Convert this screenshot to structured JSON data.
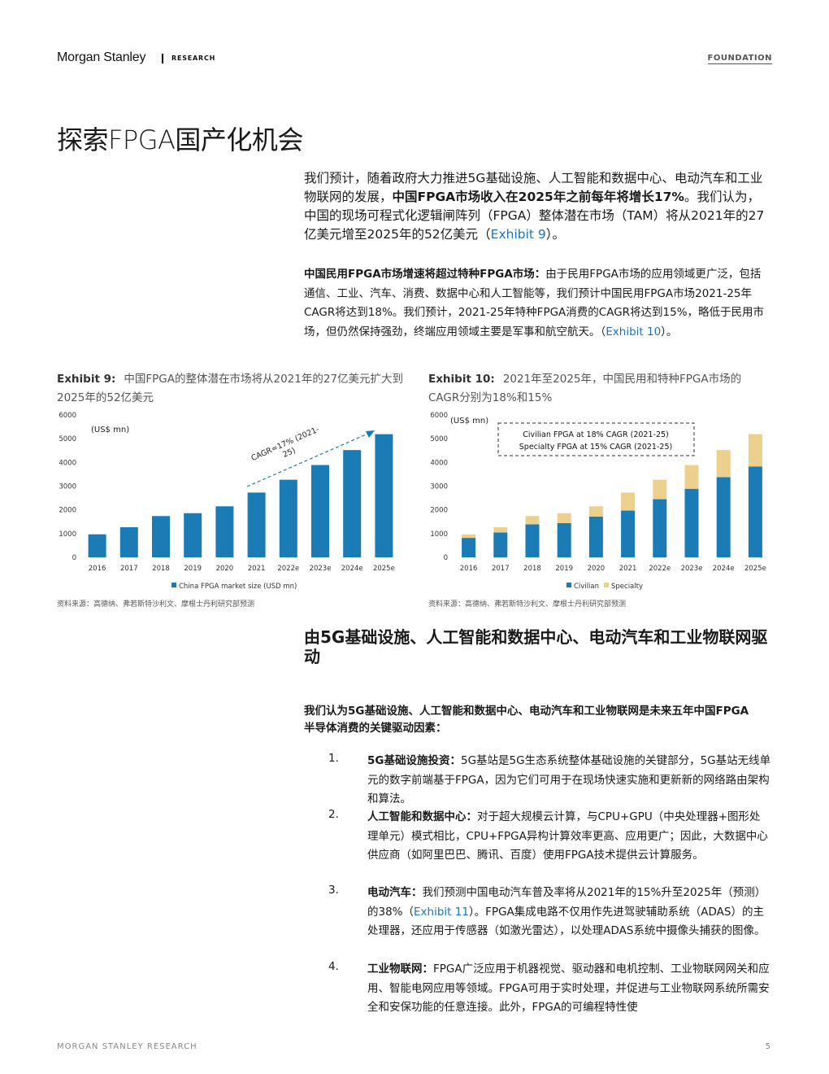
{
  "header": {
    "brand": "Morgan Stanley",
    "research": "RESEARCH",
    "foundation": "FOUNDATION"
  },
  "page_title": "探索FPGA国产化机会",
  "para1": {
    "t1": "我们预计，随着政府大力推进5G基础设施、人工智能和数据中心、电动汽车和工业物联网的发展，",
    "bold": "中国FPGA市场收入在2025年之前每年将增长17%",
    "t2": "。我们认为，中国的现场可程式化逻辑闸阵列（FPGA）整体潜在市场（TAM）将从2021年的27亿美元增至2025年的52亿美元（",
    "link": "Exhibit 9",
    "t3": "）。"
  },
  "para2": {
    "bold": "中国民用FPGA市场增速将超过特种FPGA市场：",
    "t1": "由于民用FPGA市场的应用领域更广泛，包括通信、工业、汽车、消费、数据中心和人工智能等，我们预计中国民用FPGA市场2021-25年CAGR将达到18%。我们预计，2021-25年特种FPGA消费的CAGR将达到15%，略低于民用市场，但仍然保持强劲，终端应用领域主要是军事和航空航天。（",
    "link": "Exhibit 10",
    "t2": "）。"
  },
  "exhibit9": {
    "label": "Exhibit 9:",
    "title": "中国FPGA的整体潜在市场将从2021年的27亿美元扩大到2025年的52亿美元",
    "source": "资料来源：高德纳、弗若斯特沙利文、摩根士丹利研究部预测"
  },
  "exhibit10": {
    "label": "Exhibit 10:",
    "title": "2021年至2025年，中国民用和特种FPGA市场的CAGR分别为18%和15%",
    "source": "资料来源：高德纳、弗若斯特沙利文、摩根士丹利研究部预测"
  },
  "chart_data": [
    {
      "type": "bar",
      "ylabel": "(US$ mn)",
      "ylim": [
        0,
        6000
      ],
      "yticks": [
        0,
        1000,
        2000,
        3000,
        4000,
        5000,
        6000
      ],
      "categories": [
        "2016",
        "2017",
        "2018",
        "2019",
        "2020",
        "2021",
        "2022e",
        "2023e",
        "2024e",
        "2025e"
      ],
      "series": [
        {
          "name": "China FPGA market size (USD mn)",
          "color": "#1a7bb5",
          "values": [
            970,
            1270,
            1740,
            1860,
            2150,
            2730,
            3270,
            3890,
            4520,
            5190
          ]
        }
      ],
      "annotation": "CAGR=17% (2021-25)",
      "legend": "bottom"
    },
    {
      "type": "bar",
      "stacked": true,
      "ylabel": "(US$ mn)",
      "ylim": [
        0,
        6000
      ],
      "yticks": [
        0,
        1000,
        2000,
        3000,
        4000,
        5000,
        6000
      ],
      "categories": [
        "2016",
        "2017",
        "2018",
        "2019",
        "2020",
        "2021",
        "2022e",
        "2023e",
        "2024e",
        "2025e"
      ],
      "series": [
        {
          "name": "Civilian",
          "color": "#1a7bb5",
          "values": [
            820,
            1050,
            1390,
            1440,
            1720,
            1970,
            2450,
            2890,
            3380,
            3830
          ]
        },
        {
          "name": "Specialty",
          "color": "#ecd08e",
          "values": [
            150,
            220,
            350,
            420,
            430,
            760,
            820,
            1000,
            1140,
            1360
          ]
        }
      ],
      "annotation_lines": [
        "Civilian FPGA at 18% CAGR (2021-25)",
        "Specialty FPGA at 15% CAGR (2021-25)"
      ],
      "legend": "bottom"
    }
  ],
  "section_heading": "由5G基础设施、人工智能和数据中心、电动汽车和工业物联网驱动",
  "intro": "我们认为5G基础设施、人工智能和数据中心、电动汽车和工业物联网是未来五年中国FPGA半导体消费的关键驱动因素：",
  "list": [
    {
      "num": "1.",
      "bold": "5G基础设施投资：",
      "text": "5G基站是5G生态系统整体基础设施的关键部分，5G基站无线单元的数字前端基于FPGA，因为它们可用于在现场快速实施和更新新的网络路由架构和算法。"
    },
    {
      "num": "2.",
      "bold": "人工智能和数据中心：",
      "text": "对于超大规模云计算，与CPU+GPU（中央处理器+图形处理单元）模式相比，CPU+FPGA异构计算效率更高、应用更广；因此，大数据中心供应商（如阿里巴巴、腾讯、百度）使用FPGA技术提供云计算服务。"
    },
    {
      "num": "3.",
      "bold": "电动汽车：",
      "text": "我们预测中国电动汽车普及率将从2021年的15%升至2025年（预测）的38%（",
      "link": "Exhibit 11",
      "text2": "）。FPGA集成电路不仅用作先进驾驶辅助系统（ADAS）的主处理器，还应用于传感器（如激光雷达），以处理ADAS系统中摄像头捕获的图像。"
    },
    {
      "num": "4.",
      "bold": "工业物联网：",
      "text": "FPGA广泛应用于机器视觉、驱动器和电机控制、工业物联网网关和应用、智能电网应用等领域。FPGA可用于实时处理，并促进与工业物联网系统所需安全和安保功能的任意连接。此外，FPGA的可编程特性使"
    }
  ],
  "footer": {
    "left": "MORGAN STANLEY RESEARCH",
    "page": "5"
  }
}
